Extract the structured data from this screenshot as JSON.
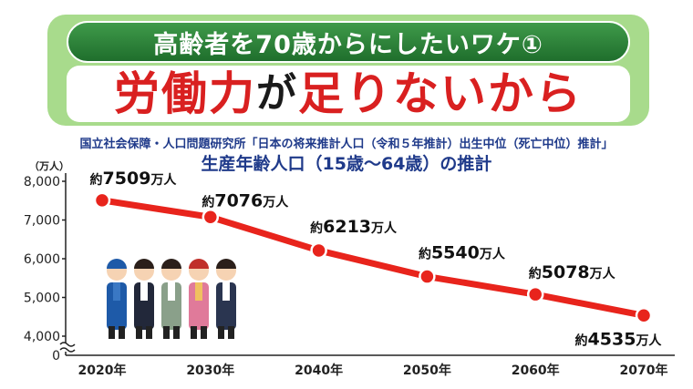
{
  "header": {
    "subtitle": "高齢者を70歳からにしたいワケ①",
    "title_parts": [
      {
        "text": "労働力",
        "color": "red"
      },
      {
        "text": "が",
        "color": "dark"
      },
      {
        "text": "足りないから",
        "color": "red"
      }
    ]
  },
  "source": "国立社会保障・人口問題研究所「日本の将来推計人口（令和５年推計）出生中位（死亡中位）推計」",
  "colors": {
    "banner": "#a8db8c",
    "pill": "#2f8a3c",
    "accent_red": "#d92020",
    "line": "#e8241c",
    "title_blue": "#1f3a8a"
  },
  "illustration": "workers-group-icon",
  "chart_data": {
    "type": "line",
    "title": "生産年齢人口（15歳〜64歳）の推計",
    "ylabel": "（万人）",
    "xlabel": "",
    "x": [
      "2020年",
      "2030年",
      "2040年",
      "2050年",
      "2060年",
      "2070年"
    ],
    "values": [
      7509,
      7076,
      6213,
      5540,
      5078,
      4535
    ],
    "data_labels": [
      {
        "prefix": "約",
        "num": "7509",
        "unit": "万人"
      },
      {
        "prefix": "約",
        "num": "7076",
        "unit": "万人"
      },
      {
        "prefix": "約",
        "num": "6213",
        "unit": "万人"
      },
      {
        "prefix": "約",
        "num": "5540",
        "unit": "万人"
      },
      {
        "prefix": "約",
        "num": "5078",
        "unit": "万人"
      },
      {
        "prefix": "約",
        "num": "4535",
        "unit": "万人"
      }
    ],
    "y_ticks": [
      {
        "value": 8000,
        "label": "8,000"
      },
      {
        "value": 7000,
        "label": "7,000"
      },
      {
        "value": 6000,
        "label": "6,000"
      },
      {
        "value": 5000,
        "label": "5,000"
      },
      {
        "value": 4000,
        "label": "4,000"
      }
    ],
    "y_zero_label": "0",
    "ylim": [
      4000,
      8000
    ],
    "axis_break": true,
    "grid": false,
    "legend": "none"
  }
}
